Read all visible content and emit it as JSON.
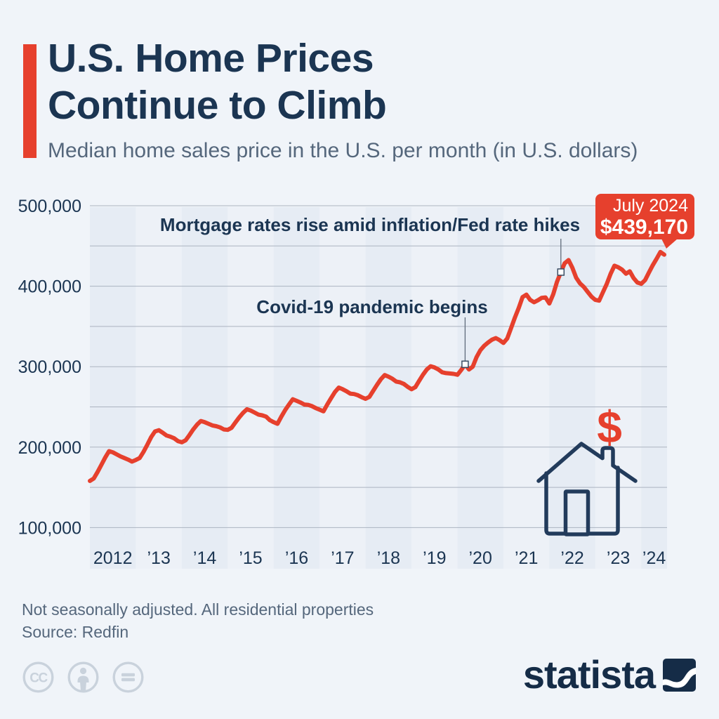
{
  "header": {
    "title_line1": "U.S. Home Prices",
    "title_line2": "Continue to Climb",
    "subtitle": "Median home sales price in the U.S. per month (in U.S. dollars)"
  },
  "chart_data": {
    "type": "line",
    "title": "U.S. Home Prices Continue to Climb",
    "subtitle": "Median home sales price in the U.S. per month (in U.S. dollars)",
    "x_start_month": "2012-01",
    "x_end_month": "2024-07",
    "x_tick_labels": [
      "2012",
      "’13",
      "’14",
      "’15",
      "’16",
      "’17",
      "’18",
      "’19",
      "’20",
      "’21",
      "’22",
      "’23",
      "’24"
    ],
    "y_gridlines": [
      100000,
      150000,
      200000,
      250000,
      300000,
      350000,
      400000,
      450000,
      500000
    ],
    "y_tick_labels": [
      {
        "value": 100000,
        "label": "100,000"
      },
      {
        "value": 200000,
        "label": "200,000"
      },
      {
        "value": 300000,
        "label": "300,000"
      },
      {
        "value": 400000,
        "label": "400,000"
      },
      {
        "value": 500000,
        "label": "500,000"
      }
    ],
    "ylim": [
      100000,
      500000
    ],
    "grid": "horizontal gridlines every 50,000; alternating vertical year bands",
    "legend": "none",
    "series": [
      {
        "name": "Median home sales price (USD)",
        "color": "#e6402d",
        "frequency": "monthly",
        "start_month": "2012-01",
        "values": [
          158000,
          161000,
          169000,
          178000,
          187000,
          195000,
          193500,
          191000,
          188500,
          186500,
          184500,
          182000,
          184000,
          186500,
          194000,
          203000,
          212500,
          219500,
          221000,
          218000,
          214500,
          213000,
          211000,
          207500,
          206000,
          208500,
          215000,
          222000,
          228000,
          232500,
          231000,
          229000,
          227000,
          226000,
          224500,
          222000,
          221500,
          224000,
          230500,
          237000,
          242500,
          247000,
          245500,
          243000,
          240500,
          239500,
          238000,
          233500,
          231000,
          229000,
          238000,
          246000,
          253000,
          259500,
          257500,
          255500,
          253000,
          252500,
          251000,
          248500,
          246500,
          244500,
          253000,
          261000,
          268500,
          274000,
          272000,
          269500,
          266500,
          266000,
          264500,
          262000,
          260000,
          262500,
          270000,
          277500,
          284500,
          289500,
          287500,
          285000,
          281500,
          280500,
          278500,
          275000,
          272000,
          274500,
          282500,
          290000,
          296500,
          300500,
          299000,
          296500,
          293000,
          292000,
          291500,
          291000,
          290000,
          296000,
          303000,
          296500,
          300000,
          312000,
          320500,
          326000,
          330000,
          333500,
          335500,
          333000,
          329500,
          335000,
          348000,
          361000,
          373000,
          386500,
          389500,
          383000,
          380000,
          382500,
          385500,
          386000,
          378500,
          390000,
          405500,
          417500,
          428500,
          432500,
          423000,
          410500,
          403500,
          399000,
          393000,
          387000,
          383000,
          382000,
          392500,
          403000,
          415500,
          425500,
          423500,
          420500,
          415500,
          418500,
          410000,
          404500,
          403000,
          407500,
          417000,
          426000,
          434000,
          442500,
          439170
        ]
      }
    ],
    "annotations": [
      {
        "label": "Covid-19 pandemic begins",
        "month": "2020-03",
        "value": 303000
      },
      {
        "label": "Mortgage rates rise amid inflation/Fed rate hikes",
        "month": "2022-04",
        "value": 417500
      }
    ],
    "callout": {
      "label": "July 2024",
      "value_label": "$439,170",
      "month": "2024-07",
      "value": 439170
    }
  },
  "footer": {
    "note": "Not seasonally adjusted. All residential properties",
    "source": "Source: Redfin"
  },
  "branding": {
    "logo_text": "statista",
    "license_icons": [
      "cc-icon",
      "attribution-person-icon",
      "equals-icon"
    ]
  },
  "icons": {
    "dollar_glyph": "$",
    "cc_glyph": "CC"
  },
  "colors": {
    "accent_red": "#e6402d",
    "navy": "#1b3552",
    "subtle_text": "#55677c",
    "background": "#f0f4f9",
    "band_even_year": "#e6ecf4",
    "band_odd_year": "#edf1f7",
    "gridline": "#abb3c0"
  }
}
